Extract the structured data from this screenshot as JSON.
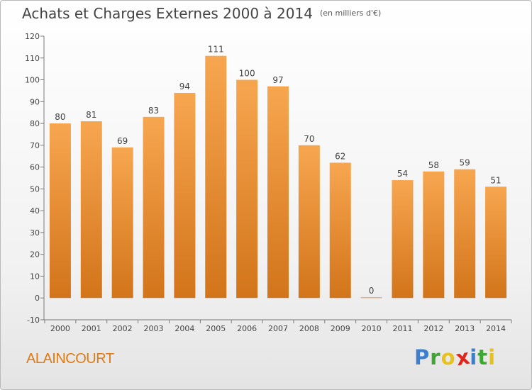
{
  "header": {
    "title": "Achats et Charges Externes 2000 à 2014",
    "unit": "(en milliers d'€)"
  },
  "footer": {
    "place": "ALAINCOURT"
  },
  "logo": {
    "text": "Proxiti",
    "letters": [
      {
        "ch": "P",
        "color": "#3a7fd0"
      },
      {
        "ch": "r",
        "color": "#3fa535"
      },
      {
        "ch": "o",
        "color": "#e8c21c"
      },
      {
        "ch": "x",
        "color": "#e2231a"
      },
      {
        "ch": "i",
        "color": "#3a7fd0"
      },
      {
        "ch": "t",
        "color": "#3fa535"
      },
      {
        "ch": "i",
        "color": "#e8c21c"
      }
    ]
  },
  "chart_data": {
    "type": "bar",
    "title": "Achats et Charges Externes 2000 à 2014",
    "subtitle": "(en milliers d'€)",
    "categories": [
      "2000",
      "2001",
      "2002",
      "2003",
      "2004",
      "2005",
      "2006",
      "2007",
      "2008",
      "2009",
      "2010",
      "2011",
      "2012",
      "2013",
      "2014"
    ],
    "values": [
      80,
      81,
      69,
      83,
      94,
      111,
      100,
      97,
      70,
      62,
      0,
      54,
      58,
      59,
      51
    ],
    "ylim": [
      -10,
      120
    ],
    "yticks": [
      -10,
      0,
      10,
      20,
      30,
      40,
      50,
      60,
      70,
      80,
      90,
      100,
      110,
      120
    ],
    "grid": false,
    "colors": {
      "bar_light": "#f5a04a",
      "bar_dark": "#d2741a",
      "axis": "#7a7a7a",
      "text": "#444444"
    }
  }
}
